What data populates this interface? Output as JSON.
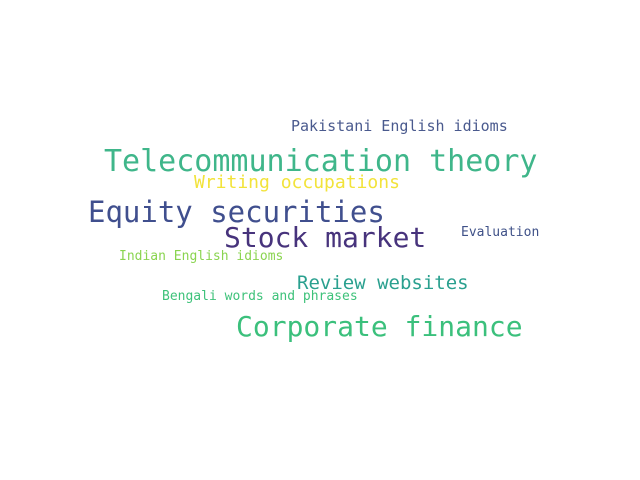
{
  "words": [
    {
      "text": "Pakistani English idioms",
      "color": "#4a5a8e"
    },
    {
      "text": "Telecommunication theory",
      "color": "#3fb68a"
    },
    {
      "text": "Writing occupations",
      "color": "#f2e33a"
    },
    {
      "text": "Equity securities",
      "color": "#404f8e"
    },
    {
      "text": "Stock market",
      "color": "#47337c"
    },
    {
      "text": "Evaluation",
      "color": "#3f5188"
    },
    {
      "text": "Indian English idioms",
      "color": "#8ad450"
    },
    {
      "text": "Review websites",
      "color": "#2aa08f"
    },
    {
      "text": "Bengali words and phrases",
      "color": "#3ec27a"
    },
    {
      "text": "Corporate finance",
      "color": "#3bc07c"
    }
  ]
}
